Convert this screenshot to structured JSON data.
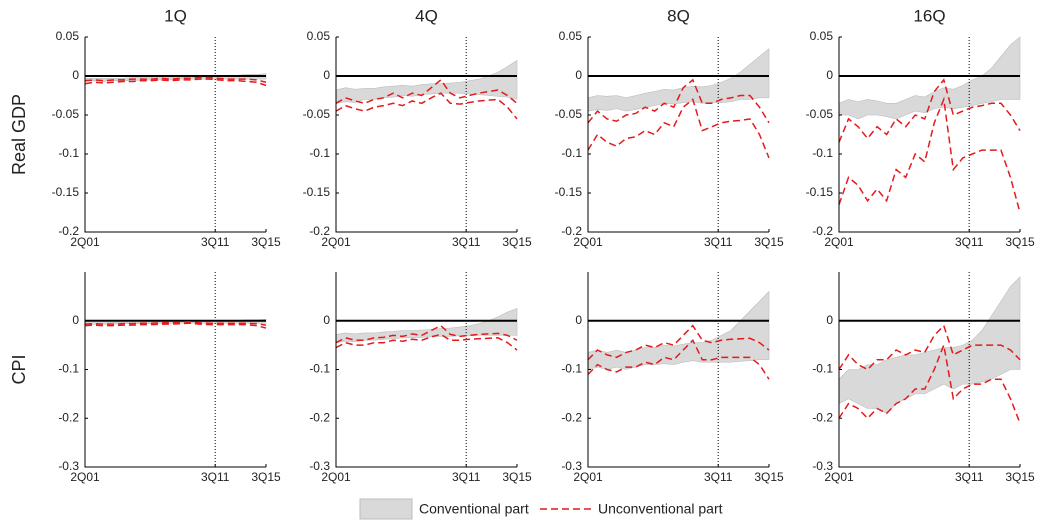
{
  "legend": [
    {
      "name": "Conventional part",
      "color": "#d9d9d9"
    },
    {
      "name": "Unconventional part",
      "color": "#e41a1c"
    }
  ],
  "chart_data": [
    {
      "type": "band",
      "title": "1Q",
      "ylabel": "Real GDP",
      "x": [
        0,
        3,
        6,
        9,
        12,
        15,
        18,
        21,
        24,
        27,
        30,
        33,
        36,
        39,
        42,
        45,
        48,
        51,
        54,
        57
      ],
      "band": {
        "lower": [
          -0.007,
          -0.006,
          -0.007,
          -0.006,
          -0.006,
          -0.006,
          -0.005,
          -0.005,
          -0.005,
          -0.005,
          -0.004,
          -0.004,
          -0.004,
          -0.004,
          -0.004,
          -0.004,
          -0.004,
          -0.004,
          -0.004,
          -0.004
        ],
        "upper": [
          -0.003,
          -0.003,
          -0.003,
          -0.003,
          -0.003,
          -0.002,
          -0.002,
          -0.002,
          -0.002,
          -0.002,
          -0.002,
          -0.001,
          -0.001,
          -0.001,
          -0.001,
          0.0,
          0.001,
          0.002,
          0.002,
          0.003
        ]
      },
      "lines": {
        "lower": [
          -0.01,
          -0.008,
          -0.009,
          -0.008,
          -0.007,
          -0.007,
          -0.006,
          -0.006,
          -0.005,
          -0.006,
          -0.005,
          -0.005,
          -0.004,
          -0.004,
          -0.005,
          -0.006,
          -0.006,
          -0.007,
          -0.008,
          -0.012
        ],
        "upper": [
          -0.006,
          -0.005,
          -0.006,
          -0.005,
          -0.005,
          -0.004,
          -0.004,
          -0.004,
          -0.003,
          -0.004,
          -0.003,
          -0.003,
          -0.002,
          -0.002,
          -0.003,
          -0.004,
          -0.004,
          -0.004,
          -0.005,
          -0.008
        ]
      },
      "xlim": [
        0,
        57
      ],
      "xticks": [
        {
          "value": 0,
          "label": "2Q01"
        },
        {
          "value": 41,
          "label": "3Q11"
        },
        {
          "value": 57,
          "label": "3Q15"
        }
      ],
      "ylim": [
        -0.2,
        0.05
      ],
      "yticks": [
        -0.2,
        -0.15,
        -0.1,
        -0.05,
        0,
        0.05
      ]
    },
    {
      "type": "band",
      "title": "4Q",
      "x": [
        0,
        3,
        6,
        9,
        12,
        15,
        18,
        21,
        24,
        27,
        30,
        33,
        36,
        39,
        42,
        45,
        48,
        51,
        54,
        57
      ],
      "band": {
        "lower": [
          -0.035,
          -0.033,
          -0.034,
          -0.03,
          -0.03,
          -0.028,
          -0.027,
          -0.025,
          -0.026,
          -0.024,
          -0.023,
          -0.022,
          -0.022,
          -0.022,
          -0.023,
          -0.024,
          -0.025,
          -0.026,
          -0.027,
          -0.03
        ],
        "upper": [
          -0.018,
          -0.015,
          -0.017,
          -0.016,
          -0.016,
          -0.014,
          -0.013,
          -0.012,
          -0.013,
          -0.011,
          -0.01,
          -0.01,
          -0.009,
          -0.008,
          -0.006,
          -0.004,
          0.0,
          0.005,
          0.012,
          0.02
        ]
      },
      "lines": {
        "lower": [
          -0.045,
          -0.038,
          -0.042,
          -0.045,
          -0.04,
          -0.038,
          -0.035,
          -0.038,
          -0.032,
          -0.035,
          -0.028,
          -0.022,
          -0.035,
          -0.036,
          -0.034,
          -0.032,
          -0.031,
          -0.03,
          -0.04,
          -0.055
        ],
        "upper": [
          -0.035,
          -0.028,
          -0.032,
          -0.035,
          -0.03,
          -0.028,
          -0.022,
          -0.028,
          -0.022,
          -0.025,
          -0.015,
          -0.005,
          -0.022,
          -0.028,
          -0.025,
          -0.022,
          -0.02,
          -0.018,
          -0.025,
          -0.035
        ]
      },
      "xlim": [
        0,
        57
      ],
      "xticks": [
        {
          "value": 0,
          "label": "2Q01"
        },
        {
          "value": 41,
          "label": "3Q11"
        },
        {
          "value": 57,
          "label": "3Q15"
        }
      ],
      "ylim": [
        -0.2,
        0.05
      ],
      "yticks": [
        -0.2,
        -0.15,
        -0.1,
        -0.05,
        0,
        0.05
      ]
    },
    {
      "type": "band",
      "title": "8Q",
      "x": [
        0,
        3,
        6,
        9,
        12,
        15,
        18,
        21,
        24,
        27,
        30,
        33,
        36,
        39,
        42,
        45,
        48,
        51,
        54,
        57
      ],
      "band": {
        "lower": [
          -0.045,
          -0.043,
          -0.044,
          -0.042,
          -0.045,
          -0.043,
          -0.04,
          -0.038,
          -0.035,
          -0.036,
          -0.034,
          -0.033,
          -0.035,
          -0.034,
          -0.034,
          -0.033,
          -0.03,
          -0.03,
          -0.028,
          -0.028
        ],
        "upper": [
          -0.028,
          -0.025,
          -0.026,
          -0.025,
          -0.028,
          -0.025,
          -0.022,
          -0.02,
          -0.017,
          -0.018,
          -0.015,
          -0.013,
          -0.014,
          -0.012,
          -0.008,
          -0.003,
          0.005,
          0.015,
          0.025,
          0.035
        ]
      },
      "lines": {
        "lower": [
          -0.095,
          -0.075,
          -0.085,
          -0.09,
          -0.08,
          -0.078,
          -0.07,
          -0.075,
          -0.06,
          -0.065,
          -0.04,
          -0.03,
          -0.07,
          -0.065,
          -0.06,
          -0.058,
          -0.057,
          -0.055,
          -0.075,
          -0.105
        ],
        "upper": [
          -0.06,
          -0.045,
          -0.055,
          -0.058,
          -0.05,
          -0.048,
          -0.04,
          -0.045,
          -0.035,
          -0.04,
          -0.015,
          -0.005,
          -0.035,
          -0.035,
          -0.03,
          -0.028,
          -0.025,
          -0.025,
          -0.04,
          -0.06
        ]
      },
      "xlim": [
        0,
        57
      ],
      "xticks": [
        {
          "value": 0,
          "label": "2Q01"
        },
        {
          "value": 41,
          "label": "3Q11"
        },
        {
          "value": 57,
          "label": "3Q15"
        }
      ],
      "ylim": [
        -0.2,
        0.05
      ],
      "yticks": [
        -0.2,
        -0.15,
        -0.1,
        -0.05,
        0,
        0.05
      ]
    },
    {
      "type": "band",
      "title": "16Q",
      "x": [
        0,
        3,
        6,
        9,
        12,
        15,
        18,
        21,
        24,
        27,
        30,
        33,
        36,
        39,
        42,
        45,
        48,
        51,
        54,
        57
      ],
      "band": {
        "lower": [
          -0.05,
          -0.05,
          -0.055,
          -0.05,
          -0.05,
          -0.052,
          -0.055,
          -0.05,
          -0.045,
          -0.047,
          -0.042,
          -0.04,
          -0.042,
          -0.04,
          -0.038,
          -0.035,
          -0.033,
          -0.03,
          -0.03,
          -0.03
        ],
        "upper": [
          -0.035,
          -0.03,
          -0.033,
          -0.03,
          -0.032,
          -0.035,
          -0.035,
          -0.03,
          -0.025,
          -0.027,
          -0.02,
          -0.015,
          -0.017,
          -0.012,
          -0.005,
          0.0,
          0.01,
          0.025,
          0.04,
          0.05
        ]
      },
      "lines": {
        "lower": [
          -0.165,
          -0.13,
          -0.14,
          -0.16,
          -0.145,
          -0.16,
          -0.12,
          -0.13,
          -0.1,
          -0.11,
          -0.06,
          -0.03,
          -0.12,
          -0.105,
          -0.1,
          -0.095,
          -0.095,
          -0.095,
          -0.13,
          -0.175
        ],
        "upper": [
          -0.085,
          -0.055,
          -0.065,
          -0.08,
          -0.065,
          -0.075,
          -0.055,
          -0.065,
          -0.05,
          -0.055,
          -0.02,
          -0.005,
          -0.05,
          -0.045,
          -0.04,
          -0.038,
          -0.035,
          -0.035,
          -0.05,
          -0.07
        ]
      },
      "xlim": [
        0,
        57
      ],
      "xticks": [
        {
          "value": 0,
          "label": "2Q01"
        },
        {
          "value": 41,
          "label": "3Q11"
        },
        {
          "value": 57,
          "label": "3Q15"
        }
      ],
      "ylim": [
        -0.2,
        0.05
      ],
      "yticks": [
        -0.2,
        -0.15,
        -0.1,
        -0.05,
        0,
        0.05
      ]
    },
    {
      "type": "band",
      "ylabel": "CPI",
      "x": [
        0,
        3,
        6,
        9,
        12,
        15,
        18,
        21,
        24,
        27,
        30,
        33,
        36,
        39,
        42,
        45,
        48,
        51,
        54,
        57
      ],
      "band": {
        "lower": [
          -0.008,
          -0.007,
          -0.007,
          -0.007,
          -0.006,
          -0.006,
          -0.006,
          -0.006,
          -0.005,
          -0.005,
          -0.005,
          -0.005,
          -0.005,
          -0.005,
          -0.005,
          -0.005,
          -0.005,
          -0.005,
          -0.005,
          -0.005
        ],
        "upper": [
          -0.004,
          -0.004,
          -0.004,
          -0.003,
          -0.003,
          -0.003,
          -0.003,
          -0.002,
          -0.002,
          -0.002,
          -0.002,
          -0.002,
          -0.002,
          -0.001,
          -0.001,
          0.0,
          0.001,
          0.002,
          0.002,
          0.003
        ]
      },
      "lines": {
        "lower": [
          -0.01,
          -0.009,
          -0.01,
          -0.01,
          -0.009,
          -0.009,
          -0.008,
          -0.008,
          -0.007,
          -0.007,
          -0.006,
          -0.005,
          -0.007,
          -0.008,
          -0.008,
          -0.008,
          -0.008,
          -0.008,
          -0.01,
          -0.015
        ],
        "upper": [
          -0.007,
          -0.006,
          -0.007,
          -0.007,
          -0.006,
          -0.006,
          -0.005,
          -0.005,
          -0.004,
          -0.004,
          -0.003,
          -0.002,
          -0.004,
          -0.005,
          -0.005,
          -0.005,
          -0.005,
          -0.005,
          -0.006,
          -0.009
        ]
      },
      "xlim": [
        0,
        57
      ],
      "xticks": [
        {
          "value": 0,
          "label": "2Q01"
        },
        {
          "value": 41,
          "label": "3Q11"
        },
        {
          "value": 57,
          "label": "3Q15"
        }
      ],
      "ylim": [
        -0.3,
        0.1
      ],
      "yticks": [
        -0.3,
        -0.2,
        -0.1,
        0
      ]
    },
    {
      "type": "band",
      "x": [
        0,
        3,
        6,
        9,
        12,
        15,
        18,
        21,
        24,
        27,
        30,
        33,
        36,
        39,
        42,
        45,
        48,
        51,
        54,
        57
      ],
      "band": {
        "lower": [
          -0.045,
          -0.042,
          -0.043,
          -0.04,
          -0.04,
          -0.038,
          -0.037,
          -0.035,
          -0.035,
          -0.034,
          -0.033,
          -0.032,
          -0.032,
          -0.031,
          -0.031,
          -0.03,
          -0.03,
          -0.03,
          -0.03,
          -0.03
        ],
        "upper": [
          -0.028,
          -0.025,
          -0.027,
          -0.025,
          -0.025,
          -0.023,
          -0.022,
          -0.02,
          -0.02,
          -0.019,
          -0.018,
          -0.016,
          -0.015,
          -0.013,
          -0.01,
          -0.006,
          0.0,
          0.008,
          0.018,
          0.025
        ]
      },
      "lines": {
        "lower": [
          -0.055,
          -0.045,
          -0.05,
          -0.05,
          -0.045,
          -0.045,
          -0.04,
          -0.042,
          -0.038,
          -0.04,
          -0.033,
          -0.028,
          -0.04,
          -0.04,
          -0.038,
          -0.037,
          -0.036,
          -0.035,
          -0.045,
          -0.06
        ],
        "upper": [
          -0.045,
          -0.035,
          -0.04,
          -0.04,
          -0.035,
          -0.034,
          -0.03,
          -0.032,
          -0.027,
          -0.03,
          -0.02,
          -0.01,
          -0.028,
          -0.032,
          -0.03,
          -0.028,
          -0.027,
          -0.026,
          -0.03,
          -0.04
        ]
      },
      "xlim": [
        0,
        57
      ],
      "xticks": [
        {
          "value": 0,
          "label": "2Q01"
        },
        {
          "value": 41,
          "label": "3Q11"
        },
        {
          "value": 57,
          "label": "3Q15"
        }
      ],
      "ylim": [
        -0.3,
        0.1
      ],
      "yticks": [
        -0.3,
        -0.2,
        -0.1,
        0
      ]
    },
    {
      "type": "band",
      "x": [
        0,
        3,
        6,
        9,
        12,
        15,
        18,
        21,
        24,
        27,
        30,
        33,
        36,
        39,
        42,
        45,
        48,
        51,
        54,
        57
      ],
      "band": {
        "lower": [
          -0.1,
          -0.095,
          -0.1,
          -0.095,
          -0.1,
          -0.095,
          -0.09,
          -0.09,
          -0.088,
          -0.09,
          -0.085,
          -0.082,
          -0.085,
          -0.085,
          -0.085,
          -0.085,
          -0.083,
          -0.082,
          -0.08,
          -0.08
        ],
        "upper": [
          -0.065,
          -0.06,
          -0.065,
          -0.06,
          -0.065,
          -0.06,
          -0.055,
          -0.055,
          -0.05,
          -0.052,
          -0.048,
          -0.045,
          -0.045,
          -0.04,
          -0.03,
          -0.02,
          0.0,
          0.02,
          0.04,
          0.06
        ]
      },
      "lines": {
        "lower": [
          -0.11,
          -0.09,
          -0.1,
          -0.105,
          -0.095,
          -0.095,
          -0.085,
          -0.09,
          -0.075,
          -0.08,
          -0.06,
          -0.04,
          -0.08,
          -0.08,
          -0.075,
          -0.075,
          -0.075,
          -0.075,
          -0.09,
          -0.12
        ],
        "upper": [
          -0.08,
          -0.06,
          -0.07,
          -0.075,
          -0.065,
          -0.06,
          -0.05,
          -0.055,
          -0.045,
          -0.05,
          -0.03,
          -0.01,
          -0.04,
          -0.045,
          -0.04,
          -0.038,
          -0.037,
          -0.036,
          -0.045,
          -0.06
        ]
      },
      "xlim": [
        0,
        57
      ],
      "xticks": [
        {
          "value": 0,
          "label": "2Q01"
        },
        {
          "value": 41,
          "label": "3Q11"
        },
        {
          "value": 57,
          "label": "3Q15"
        }
      ],
      "ylim": [
        -0.3,
        0.1
      ],
      "yticks": [
        -0.3,
        -0.2,
        -0.1,
        0
      ]
    },
    {
      "type": "band",
      "x": [
        0,
        3,
        6,
        9,
        12,
        15,
        18,
        21,
        24,
        27,
        30,
        33,
        36,
        39,
        42,
        45,
        48,
        51,
        54,
        57
      ],
      "band": {
        "lower": [
          -0.17,
          -0.16,
          -0.17,
          -0.18,
          -0.18,
          -0.19,
          -0.17,
          -0.16,
          -0.15,
          -0.15,
          -0.14,
          -0.13,
          -0.14,
          -0.13,
          -0.13,
          -0.125,
          -0.12,
          -0.11,
          -0.1,
          -0.1
        ],
        "upper": [
          -0.12,
          -0.1,
          -0.1,
          -0.09,
          -0.09,
          -0.08,
          -0.075,
          -0.07,
          -0.07,
          -0.065,
          -0.06,
          -0.055,
          -0.055,
          -0.05,
          -0.04,
          -0.02,
          0.01,
          0.04,
          0.07,
          0.09
        ]
      },
      "lines": {
        "lower": [
          -0.2,
          -0.17,
          -0.18,
          -0.2,
          -0.18,
          -0.19,
          -0.17,
          -0.16,
          -0.14,
          -0.14,
          -0.1,
          -0.05,
          -0.16,
          -0.14,
          -0.13,
          -0.13,
          -0.12,
          -0.12,
          -0.16,
          -0.21
        ],
        "upper": [
          -0.1,
          -0.07,
          -0.09,
          -0.1,
          -0.08,
          -0.08,
          -0.06,
          -0.07,
          -0.06,
          -0.065,
          -0.03,
          -0.01,
          -0.07,
          -0.06,
          -0.05,
          -0.05,
          -0.05,
          -0.05,
          -0.06,
          -0.08
        ]
      },
      "xlim": [
        0,
        57
      ],
      "xticks": [
        {
          "value": 0,
          "label": "2Q01"
        },
        {
          "value": 41,
          "label": "3Q11"
        },
        {
          "value": 57,
          "label": "3Q15"
        }
      ],
      "ylim": [
        -0.3,
        0.1
      ],
      "yticks": [
        -0.3,
        -0.2,
        -0.1,
        0
      ]
    }
  ]
}
